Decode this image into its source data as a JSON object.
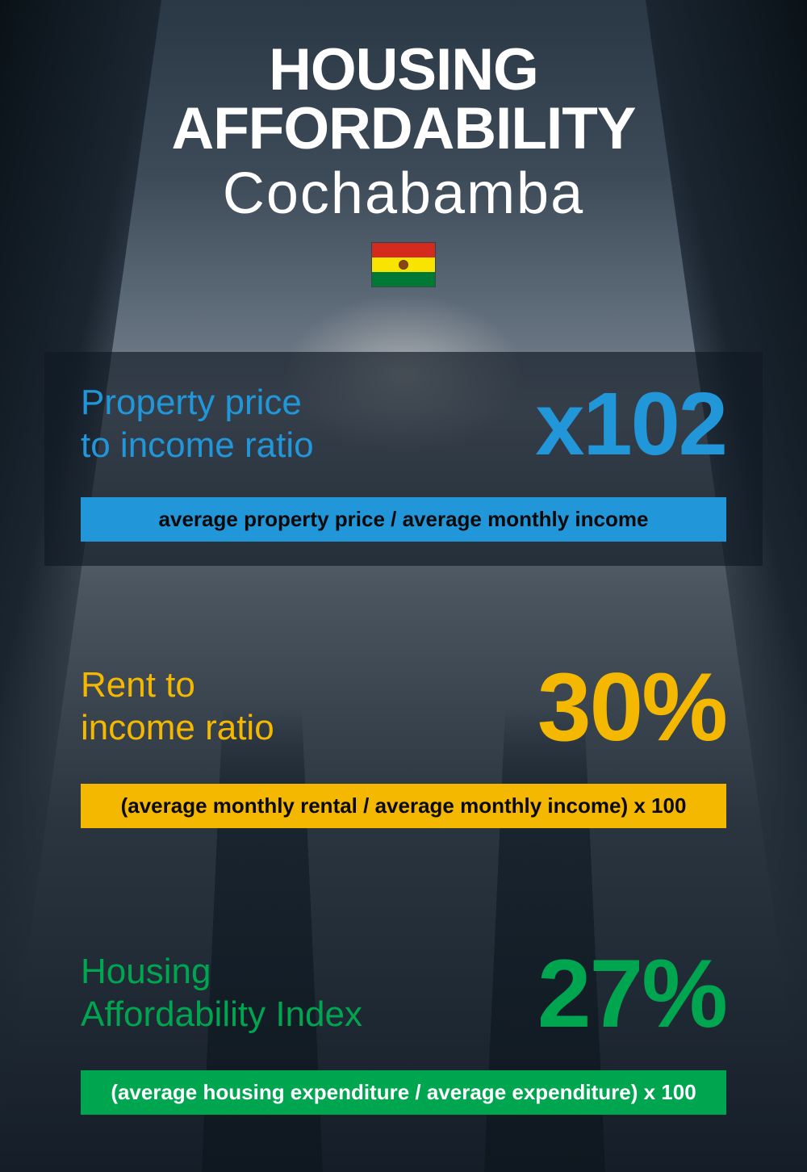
{
  "header": {
    "title_main": "HOUSING AFFORDABILITY",
    "title_sub": "Cochabamba",
    "flag_colors": {
      "red": "#d52b1e",
      "yellow": "#f9e300",
      "green": "#007934"
    }
  },
  "metrics": [
    {
      "label": "Property price to income ratio",
      "value": "x102",
      "formula": "average property price / average monthly income",
      "label_color": "#2196d9",
      "value_color": "#2196d9",
      "formula_bg": "#2196d9",
      "formula_text_color": "#0a0a0a",
      "value_fontsize": 110,
      "has_card_bg": true
    },
    {
      "label": "Rent to income ratio",
      "value": "30%",
      "formula": "(average monthly rental / average monthly income) x 100",
      "label_color": "#f5b800",
      "value_color": "#f5b800",
      "formula_bg": "#f5b800",
      "formula_text_color": "#0a0a0a",
      "value_fontsize": 120,
      "has_card_bg": false
    },
    {
      "label": "Housing Affordability Index",
      "value": "27%",
      "formula": "(average housing expenditure / average expenditure) x 100",
      "label_color": "#00a550",
      "value_color": "#00a550",
      "formula_bg": "#00a550",
      "formula_text_color": "#ffffff",
      "value_fontsize": 120,
      "has_card_bg": false
    }
  ],
  "styling": {
    "background_gradient": [
      "#2a3845",
      "#3d4a58",
      "#7a8490",
      "#2a3540",
      "#151e28"
    ],
    "card_bg": "rgba(15, 25, 35, 0.65)",
    "title_color": "#ffffff",
    "title_main_fontsize": 73,
    "title_sub_fontsize": 72,
    "label_fontsize": 44,
    "formula_fontsize": 26
  }
}
